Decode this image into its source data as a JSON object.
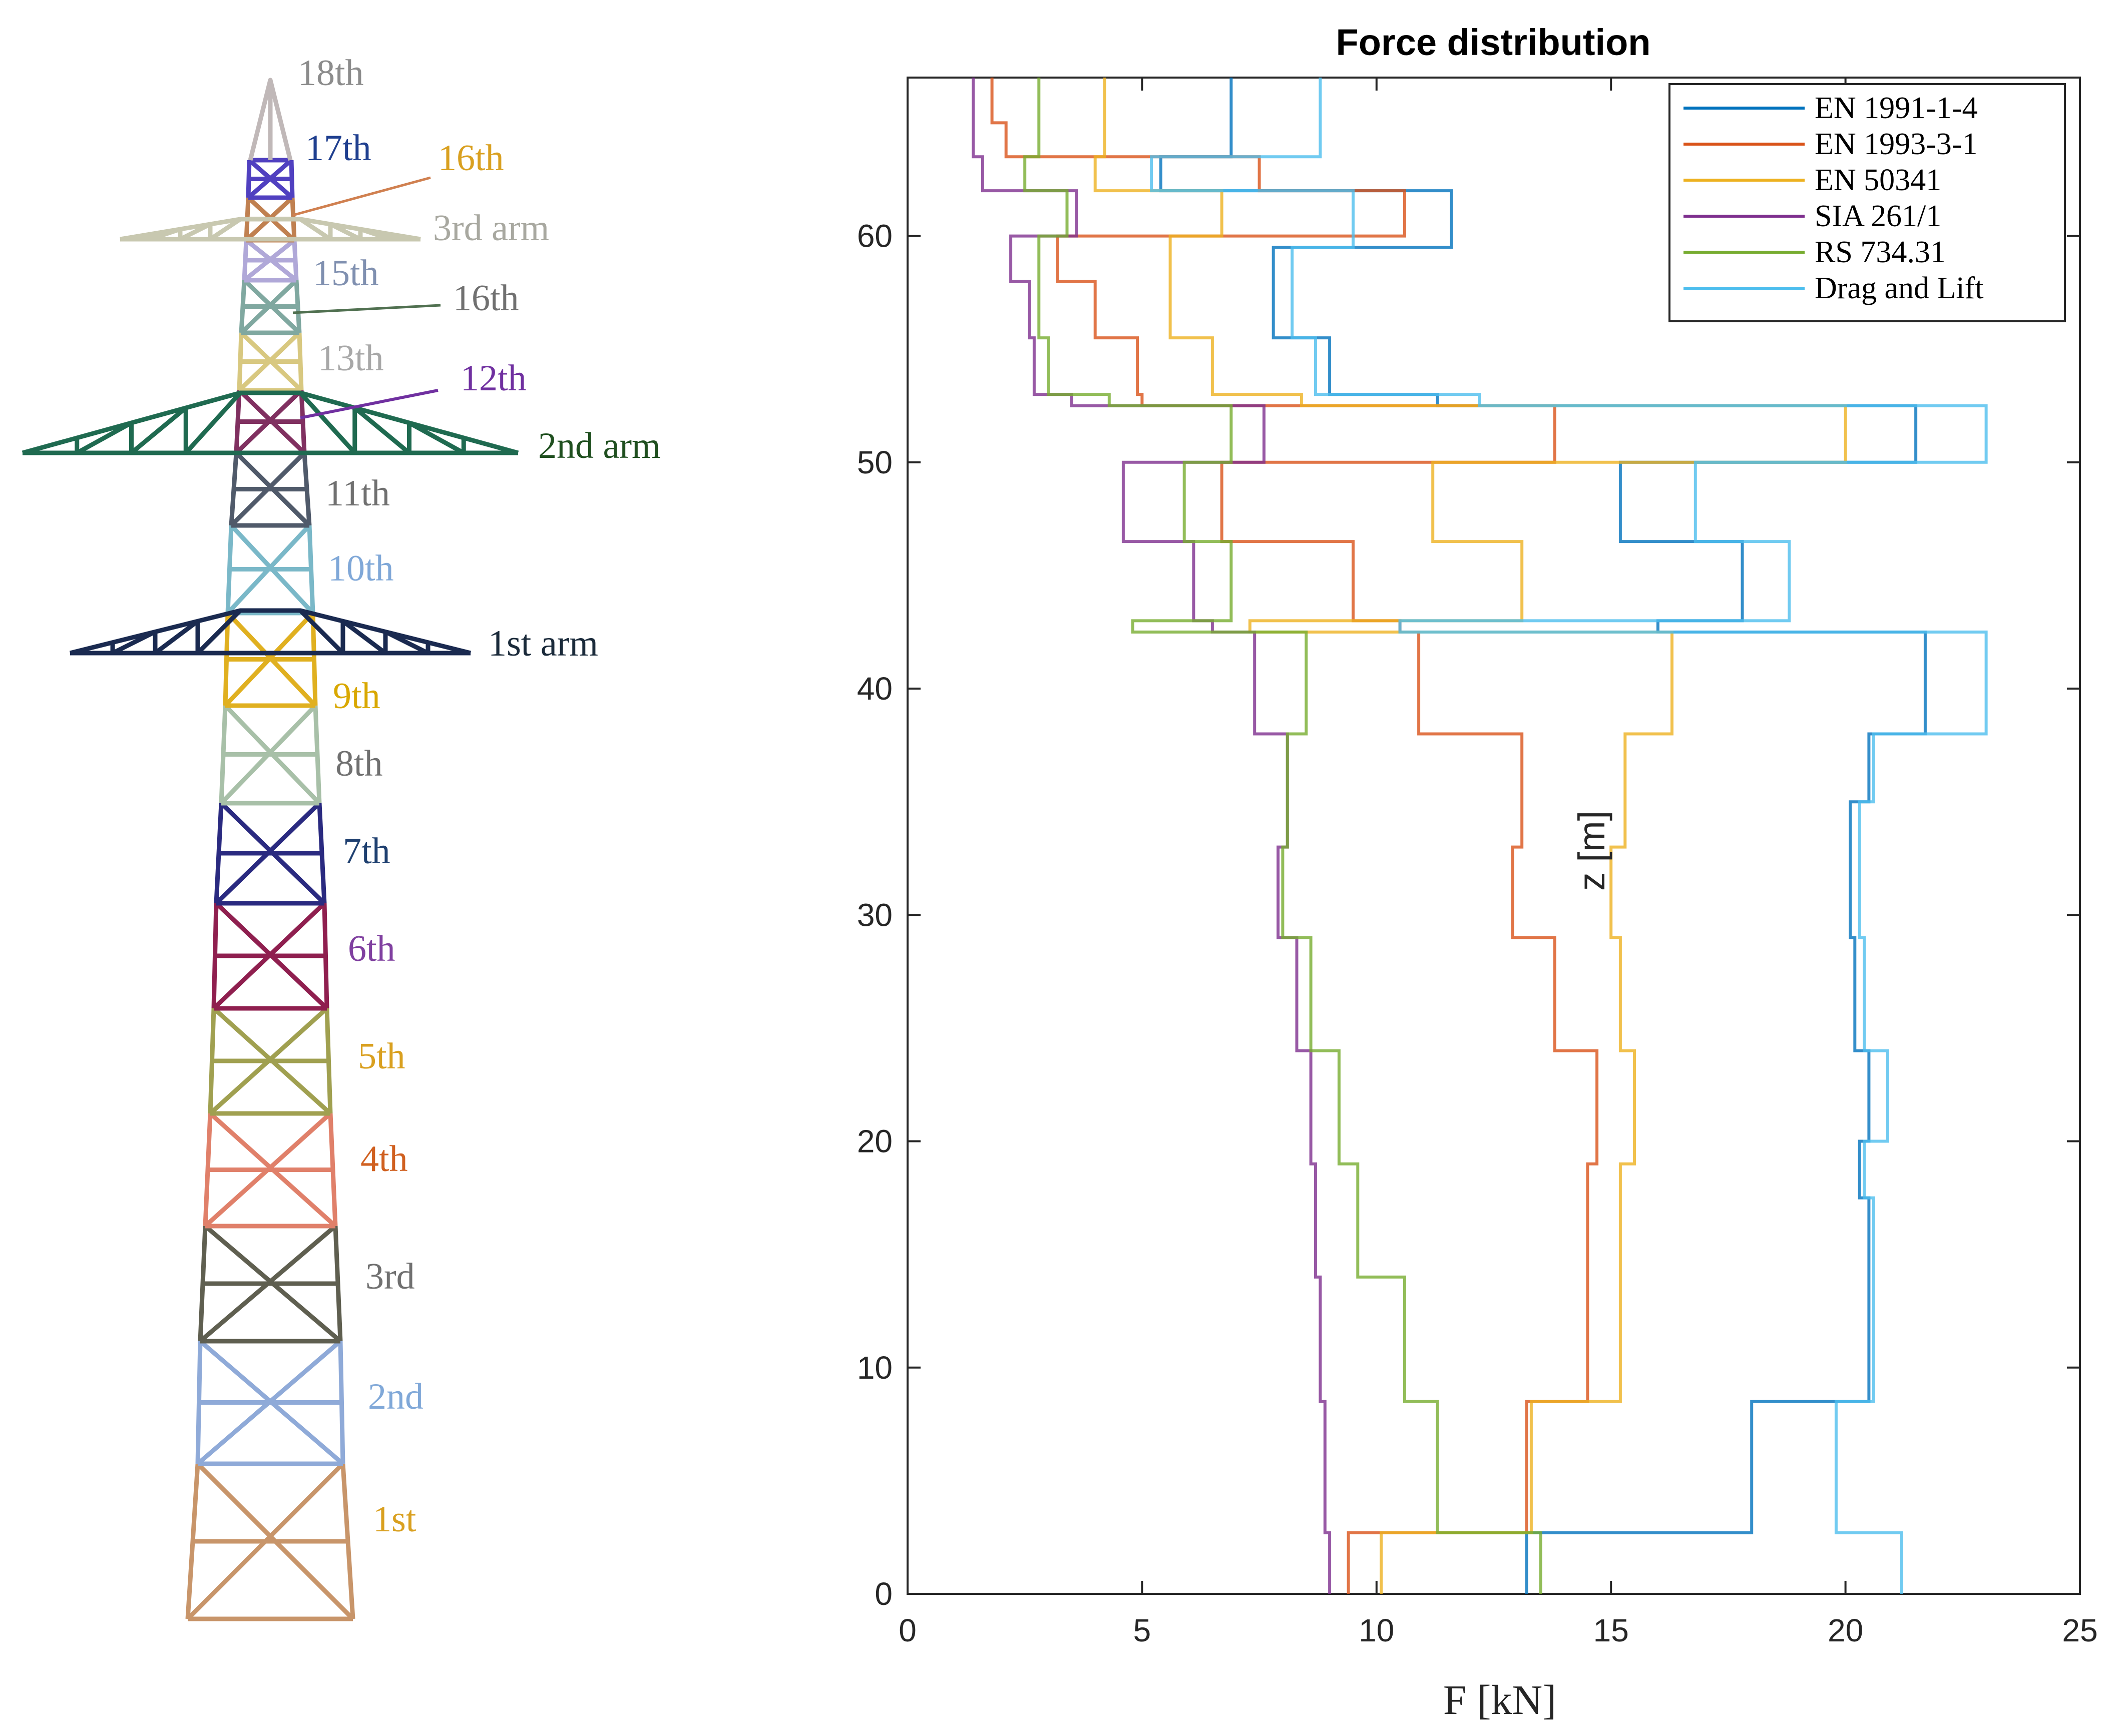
{
  "tower": {
    "labels": [
      {
        "text": "18th",
        "color": "#8c8c8c"
      },
      {
        "text": "17th",
        "color": "#1f3f8f"
      },
      {
        "text": "16th",
        "color": "#d9a020"
      },
      {
        "text": "3rd arm",
        "color": "#a8a8a0"
      },
      {
        "text": "15th",
        "color": "#8090b0"
      },
      {
        "text": "16th",
        "color": "#707070"
      },
      {
        "text": "13th",
        "color": "#a8a8a8"
      },
      {
        "text": "12th",
        "color": "#7030a0"
      },
      {
        "text": "2nd arm",
        "color": "#1f4f1f"
      },
      {
        "text": "11th",
        "color": "#707070"
      },
      {
        "text": "10th",
        "color": "#80a8d8"
      },
      {
        "text": "1st arm",
        "color": "#1a2a3a"
      },
      {
        "text": "9th",
        "color": "#d9a800"
      },
      {
        "text": "8th",
        "color": "#707070"
      },
      {
        "text": "7th",
        "color": "#1f4070"
      },
      {
        "text": "6th",
        "color": "#8040a0"
      },
      {
        "text": "5th",
        "color": "#d9a020"
      },
      {
        "text": "4th",
        "color": "#d06020"
      },
      {
        "text": "3rd",
        "color": "#707070"
      },
      {
        "text": "2nd",
        "color": "#80a8d8"
      },
      {
        "text": "1st",
        "color": "#d9a020"
      }
    ],
    "segment_colors": {
      "s1": "#c8956a",
      "s2": "#8faad8",
      "s3": "#5f5f50",
      "s4": "#e0806a",
      "s5": "#a0a050",
      "s6": "#8f1f4f",
      "s7": "#2a2a80",
      "s8": "#a8c0a8",
      "s9": "#e0b020",
      "s10": "#7ab8c8",
      "s11": "#505a6a",
      "s12": "#803060",
      "s13": "#d8c880",
      "s14": "#80a8a0",
      "s15": "#b0a8d8",
      "s16": "#c08050",
      "s17": "#5040c0",
      "s18": "#c0b8b8",
      "arm1": "#1a2a50",
      "arm2": "#1f6a50",
      "arm3": "#c8c8b0"
    }
  },
  "chart_data": {
    "type": "line",
    "title": "Force distribution",
    "xlabel": "F [kN]",
    "ylabel": "z [m]",
    "xlim": [
      0,
      25
    ],
    "ylim": [
      0,
      67
    ],
    "xticks": [
      0,
      5,
      10,
      15,
      20,
      25
    ],
    "yticks": [
      0,
      10,
      20,
      30,
      40,
      50,
      60
    ],
    "legend_position": "top-right",
    "series": [
      {
        "name": "EN 1991-1-4",
        "color": "#0072BD",
        "points": [
          [
            13.2,
            0
          ],
          [
            13.2,
            2.7
          ],
          [
            18,
            2.7
          ],
          [
            18,
            8.5
          ],
          [
            20.5,
            8.5
          ],
          [
            20.5,
            17.5
          ],
          [
            20.3,
            17.5
          ],
          [
            20.3,
            20
          ],
          [
            20.5,
            20
          ],
          [
            20.5,
            24
          ],
          [
            20.2,
            24
          ],
          [
            20.2,
            29
          ],
          [
            20.1,
            29
          ],
          [
            20.1,
            35
          ],
          [
            20.5,
            35
          ],
          [
            20.5,
            38
          ],
          [
            21.7,
            38
          ],
          [
            21.7,
            42.5
          ],
          [
            16,
            42.5
          ],
          [
            16,
            43
          ],
          [
            17.8,
            43
          ],
          [
            17.8,
            46.5
          ],
          [
            15.2,
            46.5
          ],
          [
            15.2,
            50
          ],
          [
            21.5,
            50
          ],
          [
            21.5,
            52.5
          ],
          [
            11.3,
            52.5
          ],
          [
            11.3,
            53
          ],
          [
            9,
            53
          ],
          [
            9,
            55.5
          ],
          [
            7.8,
            55.5
          ],
          [
            7.8,
            59.5
          ],
          [
            11.6,
            59.5
          ],
          [
            11.6,
            62
          ],
          [
            5.4,
            62
          ],
          [
            5.4,
            63.5
          ],
          [
            6.9,
            63.5
          ],
          [
            6.9,
            65
          ],
          [
            6.9,
            67
          ]
        ]
      },
      {
        "name": "EN 1993-3-1",
        "color": "#D95319",
        "points": [
          [
            9.4,
            0
          ],
          [
            9.4,
            2.7
          ],
          [
            13.2,
            2.7
          ],
          [
            13.2,
            8.5
          ],
          [
            14.5,
            8.5
          ],
          [
            14.5,
            19
          ],
          [
            14.7,
            19
          ],
          [
            14.7,
            24
          ],
          [
            13.8,
            24
          ],
          [
            13.8,
            29
          ],
          [
            12.9,
            29
          ],
          [
            12.9,
            33
          ],
          [
            13.1,
            33
          ],
          [
            13.1,
            38
          ],
          [
            10.9,
            38
          ],
          [
            10.9,
            42.5
          ],
          [
            10.5,
            42.5
          ],
          [
            10.5,
            43
          ],
          [
            9.5,
            43
          ],
          [
            9.5,
            46.5
          ],
          [
            6.7,
            46.5
          ],
          [
            6.7,
            50
          ],
          [
            13.8,
            50
          ],
          [
            13.8,
            52.5
          ],
          [
            5,
            52.5
          ],
          [
            5,
            53
          ],
          [
            4.9,
            53
          ],
          [
            4.9,
            55.5
          ],
          [
            4,
            55.5
          ],
          [
            4,
            58
          ],
          [
            3.2,
            58
          ],
          [
            3.2,
            60
          ],
          [
            10.6,
            60
          ],
          [
            10.6,
            62
          ],
          [
            7.5,
            62
          ],
          [
            7.5,
            63.5
          ],
          [
            2.1,
            63.5
          ],
          [
            2.1,
            65
          ],
          [
            1.8,
            65
          ],
          [
            1.8,
            67
          ]
        ]
      },
      {
        "name": "EN 50341",
        "color": "#EDB120",
        "points": [
          [
            10.1,
            0
          ],
          [
            10.1,
            2.7
          ],
          [
            13.3,
            2.7
          ],
          [
            13.3,
            8.5
          ],
          [
            15.2,
            8.5
          ],
          [
            15.2,
            19
          ],
          [
            15.5,
            19
          ],
          [
            15.5,
            24
          ],
          [
            15.2,
            24
          ],
          [
            15.2,
            29
          ],
          [
            15,
            29
          ],
          [
            15,
            33
          ],
          [
            15.3,
            33
          ],
          [
            15.3,
            38
          ],
          [
            16.3,
            38
          ],
          [
            16.3,
            42.5
          ],
          [
            7.3,
            42.5
          ],
          [
            7.3,
            43
          ],
          [
            13.1,
            43
          ],
          [
            13.1,
            46.5
          ],
          [
            11.2,
            46.5
          ],
          [
            11.2,
            50
          ],
          [
            20,
            50
          ],
          [
            20,
            52.5
          ],
          [
            8.4,
            52.5
          ],
          [
            8.4,
            53
          ],
          [
            6.5,
            53
          ],
          [
            6.5,
            55.5
          ],
          [
            5.6,
            55.5
          ],
          [
            5.6,
            60
          ],
          [
            6.7,
            60
          ],
          [
            6.7,
            62
          ],
          [
            4,
            62
          ],
          [
            4,
            63.5
          ],
          [
            4.2,
            63.5
          ],
          [
            4.2,
            65
          ],
          [
            4.2,
            67
          ]
        ]
      },
      {
        "name": "SIA 261/1",
        "color": "#7E2F8E",
        "points": [
          [
            9,
            0
          ],
          [
            9,
            2.7
          ],
          [
            8.9,
            2.7
          ],
          [
            8.9,
            8.5
          ],
          [
            8.8,
            8.5
          ],
          [
            8.8,
            14
          ],
          [
            8.7,
            14
          ],
          [
            8.7,
            19
          ],
          [
            8.6,
            19
          ],
          [
            8.6,
            24
          ],
          [
            8.3,
            24
          ],
          [
            8.3,
            29
          ],
          [
            7.9,
            29
          ],
          [
            7.9,
            33
          ],
          [
            8.1,
            33
          ],
          [
            8.1,
            38
          ],
          [
            7.4,
            38
          ],
          [
            7.4,
            42.5
          ],
          [
            6.5,
            42.5
          ],
          [
            6.5,
            43
          ],
          [
            6.1,
            43
          ],
          [
            6.1,
            46.5
          ],
          [
            4.6,
            46.5
          ],
          [
            4.6,
            50
          ],
          [
            7.6,
            50
          ],
          [
            7.6,
            52.5
          ],
          [
            3.5,
            52.5
          ],
          [
            3.5,
            53
          ],
          [
            2.7,
            53
          ],
          [
            2.7,
            55.5
          ],
          [
            2.6,
            55.5
          ],
          [
            2.6,
            58
          ],
          [
            2.2,
            58
          ],
          [
            2.2,
            60
          ],
          [
            3.6,
            60
          ],
          [
            3.6,
            62
          ],
          [
            1.6,
            62
          ],
          [
            1.6,
            63.5
          ],
          [
            1.4,
            63.5
          ],
          [
            1.4,
            65
          ],
          [
            1.4,
            67
          ]
        ]
      },
      {
        "name": "RS 734.31",
        "color": "#77AC30",
        "points": [
          [
            13.5,
            0
          ],
          [
            13.5,
            2.7
          ],
          [
            11.3,
            2.7
          ],
          [
            11.3,
            8.5
          ],
          [
            10.6,
            8.5
          ],
          [
            10.6,
            14
          ],
          [
            9.6,
            14
          ],
          [
            9.6,
            19
          ],
          [
            9.2,
            19
          ],
          [
            9.2,
            24
          ],
          [
            8.6,
            24
          ],
          [
            8.6,
            29
          ],
          [
            8,
            29
          ],
          [
            8,
            33
          ],
          [
            8.1,
            33
          ],
          [
            8.1,
            38
          ],
          [
            8.5,
            38
          ],
          [
            8.5,
            42.5
          ],
          [
            4.8,
            42.5
          ],
          [
            4.8,
            43
          ],
          [
            6.9,
            43
          ],
          [
            6.9,
            46.5
          ],
          [
            5.9,
            46.5
          ],
          [
            5.9,
            50
          ],
          [
            6.9,
            50
          ],
          [
            6.9,
            52.5
          ],
          [
            4.3,
            52.5
          ],
          [
            4.3,
            53
          ],
          [
            3,
            53
          ],
          [
            3,
            55.5
          ],
          [
            2.8,
            55.5
          ],
          [
            2.8,
            60
          ],
          [
            3.4,
            60
          ],
          [
            3.4,
            62
          ],
          [
            2.5,
            62
          ],
          [
            2.5,
            63.5
          ],
          [
            2.8,
            63.5
          ],
          [
            2.8,
            65
          ],
          [
            2.8,
            67
          ]
        ]
      },
      {
        "name": "Drag and Lift",
        "color": "#4DBEEE",
        "points": [
          [
            21.2,
            0
          ],
          [
            21.2,
            2.7
          ],
          [
            19.8,
            2.7
          ],
          [
            19.8,
            8.5
          ],
          [
            20.6,
            8.5
          ],
          [
            20.6,
            17.5
          ],
          [
            20.4,
            17.5
          ],
          [
            20.4,
            20
          ],
          [
            20.9,
            20
          ],
          [
            20.9,
            24
          ],
          [
            20.4,
            24
          ],
          [
            20.4,
            29
          ],
          [
            20.3,
            29
          ],
          [
            20.3,
            35
          ],
          [
            20.6,
            35
          ],
          [
            20.6,
            38
          ],
          [
            23,
            38
          ],
          [
            23,
            42.5
          ],
          [
            10.5,
            42.5
          ],
          [
            10.5,
            43
          ],
          [
            18.8,
            43
          ],
          [
            18.8,
            46.5
          ],
          [
            16.8,
            46.5
          ],
          [
            16.8,
            50
          ],
          [
            23,
            50
          ],
          [
            23,
            52.5
          ],
          [
            12.2,
            52.5
          ],
          [
            12.2,
            53
          ],
          [
            8.7,
            53
          ],
          [
            8.7,
            55.5
          ],
          [
            8.2,
            55.5
          ],
          [
            8.2,
            59.5
          ],
          [
            9.5,
            59.5
          ],
          [
            9.5,
            62
          ],
          [
            5.2,
            62
          ],
          [
            5.2,
            63.5
          ],
          [
            8.8,
            63.5
          ],
          [
            8.8,
            65
          ],
          [
            8.8,
            67
          ]
        ]
      }
    ]
  }
}
